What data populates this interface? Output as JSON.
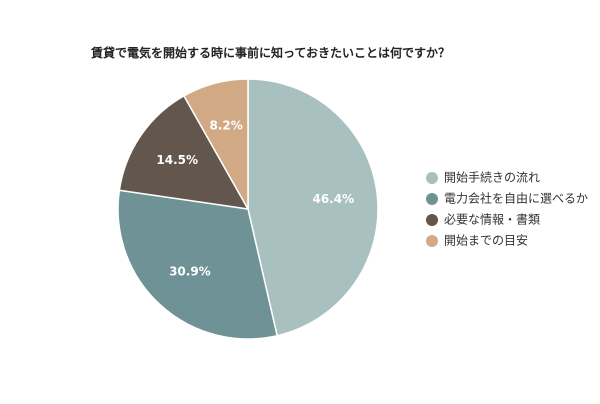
{
  "chart_data": {
    "type": "pie",
    "title": "賃貸で電気を開始する時に事前に知っておきたいことは何ですか？",
    "legend_position": "right",
    "start_angle_deg": 0,
    "direction": "clockwise",
    "slices": [
      {
        "label": "開始手続きの流れ",
        "value": 46.4,
        "value_label": "46.4%",
        "color": "#a8c0c0"
      },
      {
        "label": "電力会社を自由に選べるか",
        "value": 30.9,
        "value_label": "30.9%",
        "color": "#6e9296"
      },
      {
        "label": "必要な情報・書類",
        "value": 14.5,
        "value_label": "14.5%",
        "color": "#62564d"
      },
      {
        "label": "開始までの目安",
        "value": 8.2,
        "value_label": "8.2%",
        "color": "#d1a985"
      }
    ]
  }
}
